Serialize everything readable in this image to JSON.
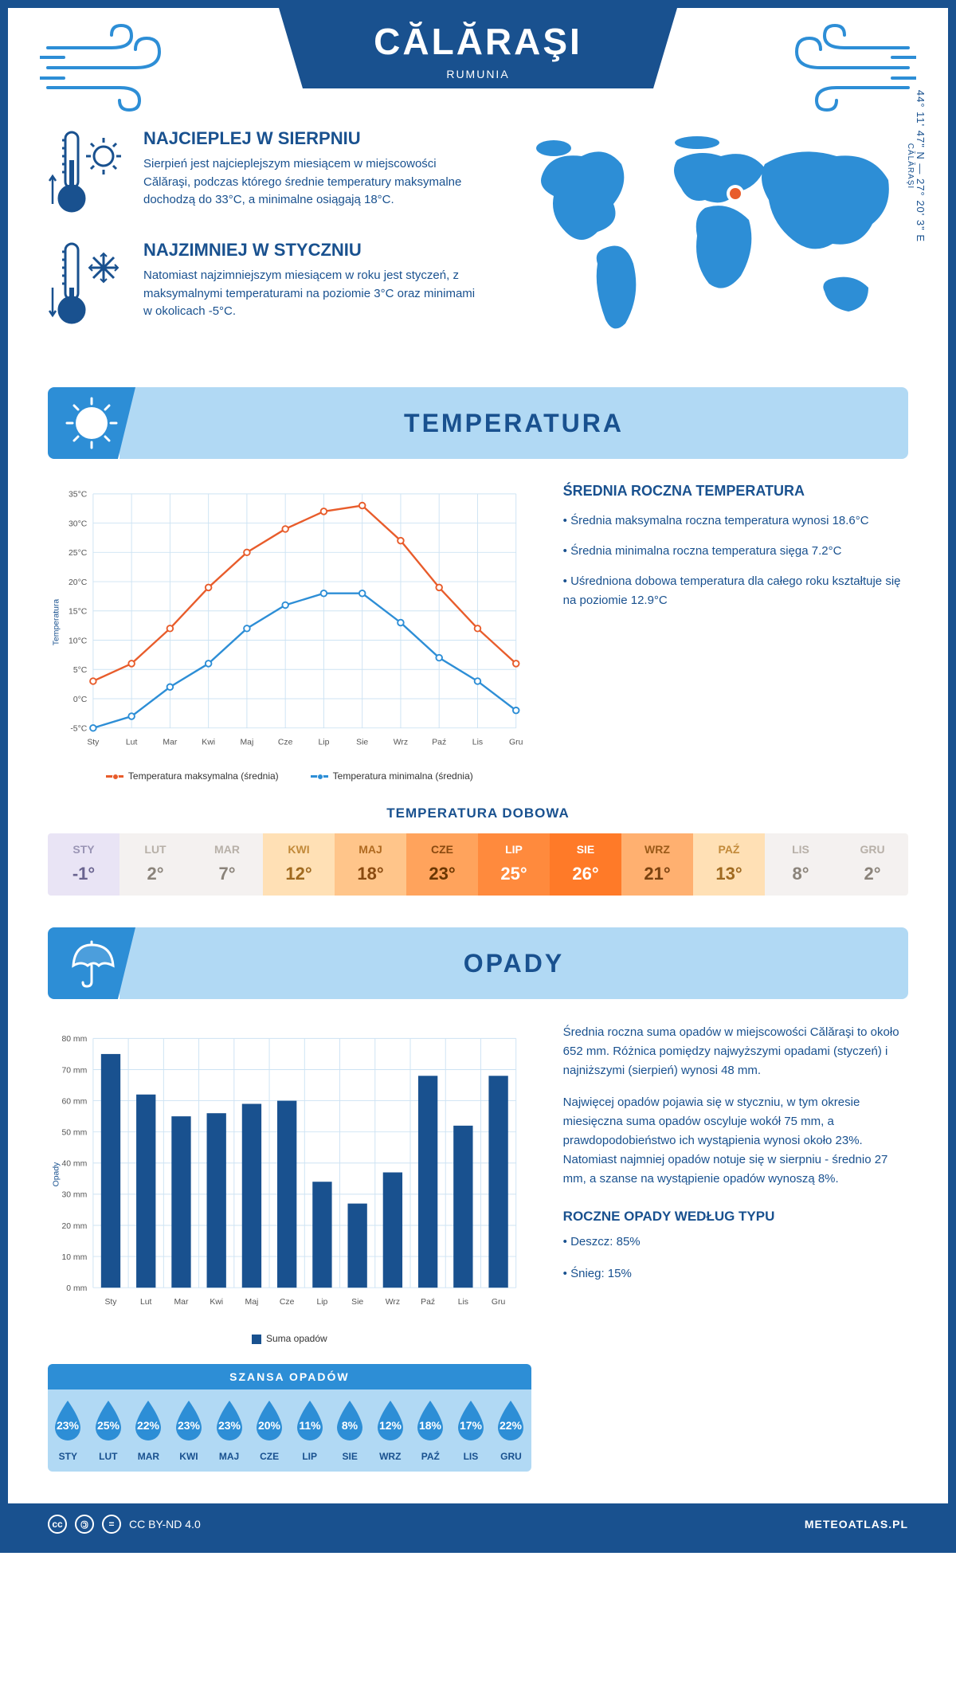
{
  "colors": {
    "primary": "#19518f",
    "accent": "#2d8ed6",
    "light": "#b1d9f4",
    "max_line": "#e85c2b",
    "min_line": "#2d8ed6",
    "grid": "#cde3f3",
    "text_dark": "#19518f"
  },
  "header": {
    "city": "CĂLĂRAŞI",
    "country": "RUMUNIA",
    "coords": "44° 11' 47\" N — 27° 20' 3\" E",
    "coords_city": "CĂLĂRAŞI"
  },
  "intro": {
    "hot": {
      "title": "NAJCIEPLEJ W SIERPNIU",
      "text": "Sierpień jest najcieplejszym miesiącem w miejscowości Călăraşi, podczas którego średnie temperatury maksymalne dochodzą do 33°C, a minimalne osiągają 18°C."
    },
    "cold": {
      "title": "NAJZIMNIEJ W STYCZNIU",
      "text": "Natomiast najzimniejszym miesiącem w roku jest styczeń, z maksymalnymi temperaturami na poziomie 3°C oraz minimami w okolicach -5°C."
    }
  },
  "sections": {
    "temperature": "TEMPERATURA",
    "precipitation": "OPADY"
  },
  "months_short": [
    "Sty",
    "Lut",
    "Mar",
    "Kwi",
    "Maj",
    "Cze",
    "Lip",
    "Sie",
    "Wrz",
    "Paź",
    "Lis",
    "Gru"
  ],
  "months_upper": [
    "STY",
    "LUT",
    "MAR",
    "KWI",
    "MAJ",
    "CZE",
    "LIP",
    "SIE",
    "WRZ",
    "PAŹ",
    "LIS",
    "GRU"
  ],
  "temp_chart": {
    "ylabel": "Temperatura",
    "ymin": -5,
    "ymax": 35,
    "ystep": 5,
    "max_series": [
      3,
      6,
      12,
      19,
      25,
      29,
      32,
      33,
      27,
      19,
      12,
      6
    ],
    "min_series": [
      -5,
      -3,
      2,
      6,
      12,
      16,
      18,
      18,
      13,
      7,
      3,
      -2
    ],
    "legend_max": "Temperatura maksymalna (średnia)",
    "legend_min": "Temperatura minimalna (średnia)"
  },
  "temp_info": {
    "title": "ŚREDNIA ROCZNA TEMPERATURA",
    "b1": "• Średnia maksymalna roczna temperatura wynosi 18.6°C",
    "b2": "• Średnia minimalna roczna temperatura sięga 7.2°C",
    "b3": "• Uśredniona dobowa temperatura dla całego roku kształtuje się na poziomie 12.9°C"
  },
  "daily": {
    "title": "TEMPERATURA DOBOWA",
    "values": [
      "-1°",
      "2°",
      "7°",
      "12°",
      "18°",
      "23°",
      "25°",
      "26°",
      "21°",
      "13°",
      "8°",
      "2°"
    ],
    "bg_colors": [
      "#e9e4f5",
      "#f4f1f0",
      "#f4f1f0",
      "#ffe0b5",
      "#ffc58a",
      "#ffa35c",
      "#ff8a3d",
      "#ff7a28",
      "#ffb070",
      "#ffe0b5",
      "#f4f1f0",
      "#f4f1f0"
    ],
    "label_colors": [
      "#9a95b5",
      "#b7b0a8",
      "#b7b0a8",
      "#c28a3a",
      "#b06a20",
      "#8a4a10",
      "#ffffff",
      "#ffffff",
      "#9a5a18",
      "#c28a3a",
      "#b7b0a8",
      "#b7b0a8"
    ],
    "value_colors": [
      "#6a6490",
      "#8a837a",
      "#8a837a",
      "#a06a20",
      "#8a4a10",
      "#6a3600",
      "#ffffff",
      "#ffffff",
      "#7a4210",
      "#a06a20",
      "#8a837a",
      "#8a837a"
    ]
  },
  "rain_chart": {
    "ylabel": "Opady",
    "ymin": 0,
    "ymax": 80,
    "ystep": 10,
    "values": [
      75,
      62,
      55,
      56,
      59,
      60,
      34,
      27,
      37,
      68,
      52,
      68
    ],
    "legend": "Suma opadów",
    "bar_color": "#19518f"
  },
  "rain_info": {
    "p1": "Średnia roczna suma opadów w miejscowości Călăraşi to około 652 mm. Różnica pomiędzy najwyższymi opadami (styczeń) i najniższymi (sierpień) wynosi 48 mm.",
    "p2": "Najwięcej opadów pojawia się w styczniu, w tym okresie miesięczna suma opadów oscyluje wokół 75 mm, a prawdopodobieństwo ich wystąpienia wynosi około 23%. Natomiast najmniej opadów notuje się w sierpniu - średnio 27 mm, a szanse na wystąpienie opadów wynoszą 8%.",
    "type_title": "ROCZNE OPADY WEDŁUG TYPU",
    "type_b1": "• Deszcz: 85%",
    "type_b2": "• Śnieg: 15%"
  },
  "chance": {
    "title": "SZANSA OPADÓW",
    "values": [
      "23%",
      "25%",
      "22%",
      "23%",
      "23%",
      "20%",
      "11%",
      "8%",
      "12%",
      "18%",
      "17%",
      "22%"
    ],
    "drop_color": "#2d8ed6"
  },
  "footer": {
    "license": "CC BY-ND 4.0",
    "site": "METEOATLAS.PL"
  }
}
